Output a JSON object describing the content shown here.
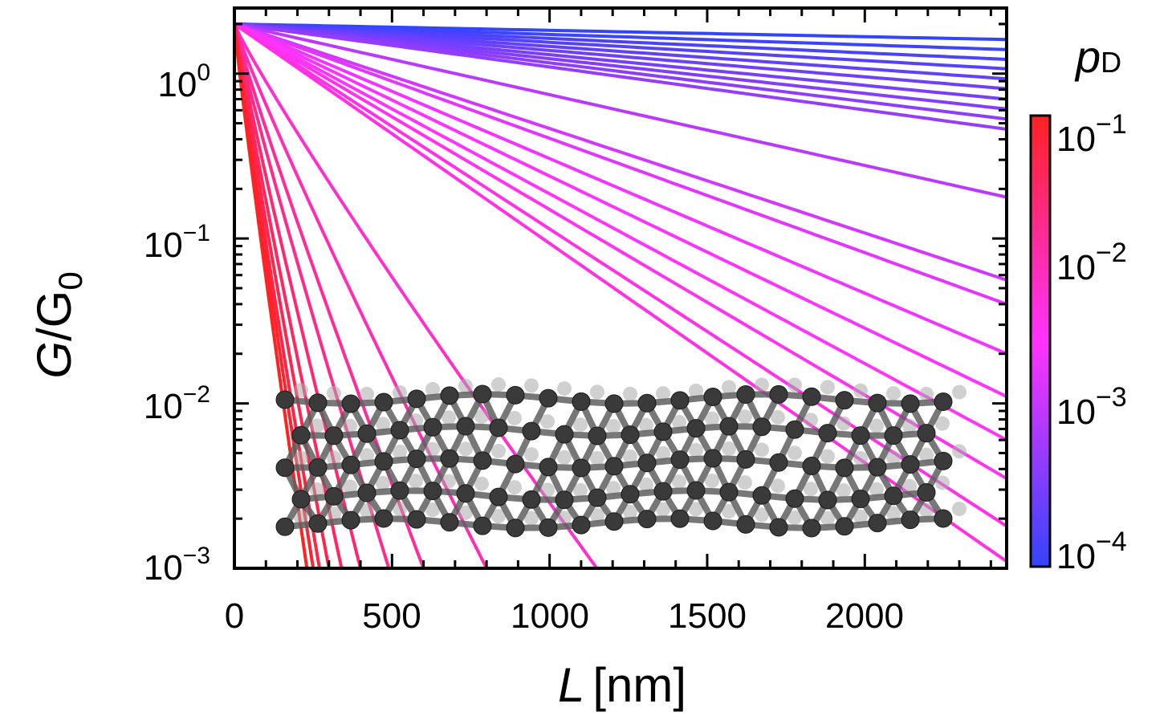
{
  "chart_data": {
    "type": "line",
    "xlabel": {
      "symbol": "L",
      "unit": "[nm]"
    },
    "ylabel": {
      "symbol": "G",
      "sep": "/",
      "base": "G",
      "sub": "0"
    },
    "xlim": [
      0,
      2450
    ],
    "ylim": [
      0.001,
      2.5
    ],
    "y_scale": "log",
    "x_ticks": [
      {
        "value": 0,
        "label": "0"
      },
      {
        "value": 500,
        "label": "500"
      },
      {
        "value": 1000,
        "label": "1000"
      },
      {
        "value": 1500,
        "label": "1500"
      },
      {
        "value": 2000,
        "label": "2000"
      }
    ],
    "y_ticks": [
      {
        "value": 1,
        "base": "10",
        "exp": "0"
      },
      {
        "value": 0.1,
        "base": "10",
        "exp": "−1"
      },
      {
        "value": 0.01,
        "base": "10",
        "exp": "−2"
      },
      {
        "value": 0.001,
        "base": "10",
        "exp": "−3"
      }
    ],
    "colorbar": {
      "title": {
        "symbol": "p",
        "sub": "D"
      },
      "scale": "log",
      "range": [
        0.0001,
        0.1
      ],
      "color_low": "#3344ff",
      "color_mid": "#ff33ff",
      "color_high": "#ff2222",
      "ticks": [
        {
          "value": 0.1,
          "base": "10",
          "exp": "−1"
        },
        {
          "value": 0.01,
          "base": "10",
          "exp": "−2"
        },
        {
          "value": 0.001,
          "base": "10",
          "exp": "−3"
        },
        {
          "value": 0.0001,
          "base": "10",
          "exp": "−4"
        }
      ]
    },
    "G_at_L0": 2.0,
    "series": [
      {
        "pD": 0.0001,
        "x": [
          0,
          2450
        ],
        "y": [
          2.0,
          1.61
        ]
      },
      {
        "pD": 0.00012,
        "x": [
          0,
          2450
        ],
        "y": [
          2.0,
          1.4
        ]
      },
      {
        "pD": 0.00015,
        "x": [
          0,
          2450
        ],
        "y": [
          2.0,
          1.22
        ]
      },
      {
        "pD": 0.00018,
        "x": [
          0,
          2450
        ],
        "y": [
          2.0,
          1.07
        ]
      },
      {
        "pD": 0.00022,
        "x": [
          0,
          2450
        ],
        "y": [
          2.0,
          0.93
        ]
      },
      {
        "pD": 0.00027,
        "x": [
          0,
          2450
        ],
        "y": [
          2.0,
          0.81
        ]
      },
      {
        "pD": 0.00032,
        "x": [
          0,
          2450
        ],
        "y": [
          2.0,
          0.7
        ]
      },
      {
        "pD": 0.00038,
        "x": [
          0,
          2450
        ],
        "y": [
          2.0,
          0.61
        ]
      },
      {
        "pD": 0.00045,
        "x": [
          0,
          2450
        ],
        "y": [
          2.0,
          0.53
        ]
      },
      {
        "pD": 0.00052,
        "x": [
          0,
          2450
        ],
        "y": [
          2.0,
          0.46
        ]
      },
      {
        "pD": 0.001,
        "x": [
          0,
          2450
        ],
        "y": [
          2.0,
          0.178
        ]
      },
      {
        "pD": 0.0015,
        "x": [
          0,
          2450
        ],
        "y": [
          2.0,
          0.056
        ]
      },
      {
        "pD": 0.002,
        "x": [
          0,
          2450
        ],
        "y": [
          2.0,
          0.04
        ]
      },
      {
        "pD": 0.0025,
        "x": [
          0,
          2450
        ],
        "y": [
          2.0,
          0.02
        ]
      },
      {
        "pD": 0.003,
        "x": [
          0,
          2450
        ],
        "y": [
          2.0,
          0.011
        ]
      },
      {
        "pD": 0.0035,
        "x": [
          0,
          2450
        ],
        "y": [
          2.0,
          0.006
        ]
      },
      {
        "pD": 0.004,
        "x": [
          0,
          2450
        ],
        "y": [
          2.0,
          0.0035
        ]
      },
      {
        "pD": 0.0045,
        "x": [
          0,
          2450
        ],
        "y": [
          2.0,
          0.0018
        ]
      },
      {
        "pD": 0.005,
        "x": [
          0,
          2450
        ],
        "y": [
          2.0,
          0.0011
        ]
      },
      {
        "pD": 0.007,
        "x": [
          0,
          1150
        ],
        "y": [
          2.0,
          0.001
        ]
      },
      {
        "pD": 0.01,
        "x": [
          0,
          800
        ],
        "y": [
          2.0,
          0.001
        ]
      },
      {
        "pD": 0.015,
        "x": [
          0,
          600
        ],
        "y": [
          2.0,
          0.001
        ]
      },
      {
        "pD": 0.02,
        "x": [
          0,
          490
        ],
        "y": [
          2.0,
          0.001
        ]
      },
      {
        "pD": 0.03,
        "x": [
          0,
          400
        ],
        "y": [
          2.0,
          0.001
        ]
      },
      {
        "pD": 0.04,
        "x": [
          0,
          340
        ],
        "y": [
          2.0,
          0.001
        ]
      },
      {
        "pD": 0.05,
        "x": [
          0,
          300
        ],
        "y": [
          2.0,
          0.001
        ]
      },
      {
        "pD": 0.06,
        "x": [
          0,
          270
        ],
        "y": [
          2.0,
          0.001
        ]
      },
      {
        "pD": 0.08,
        "x": [
          0,
          250
        ],
        "y": [
          2.0,
          0.001
        ]
      },
      {
        "pD": 0.1,
        "x": [
          0,
          230
        ],
        "y": [
          2.0,
          0.001
        ]
      }
    ]
  }
}
